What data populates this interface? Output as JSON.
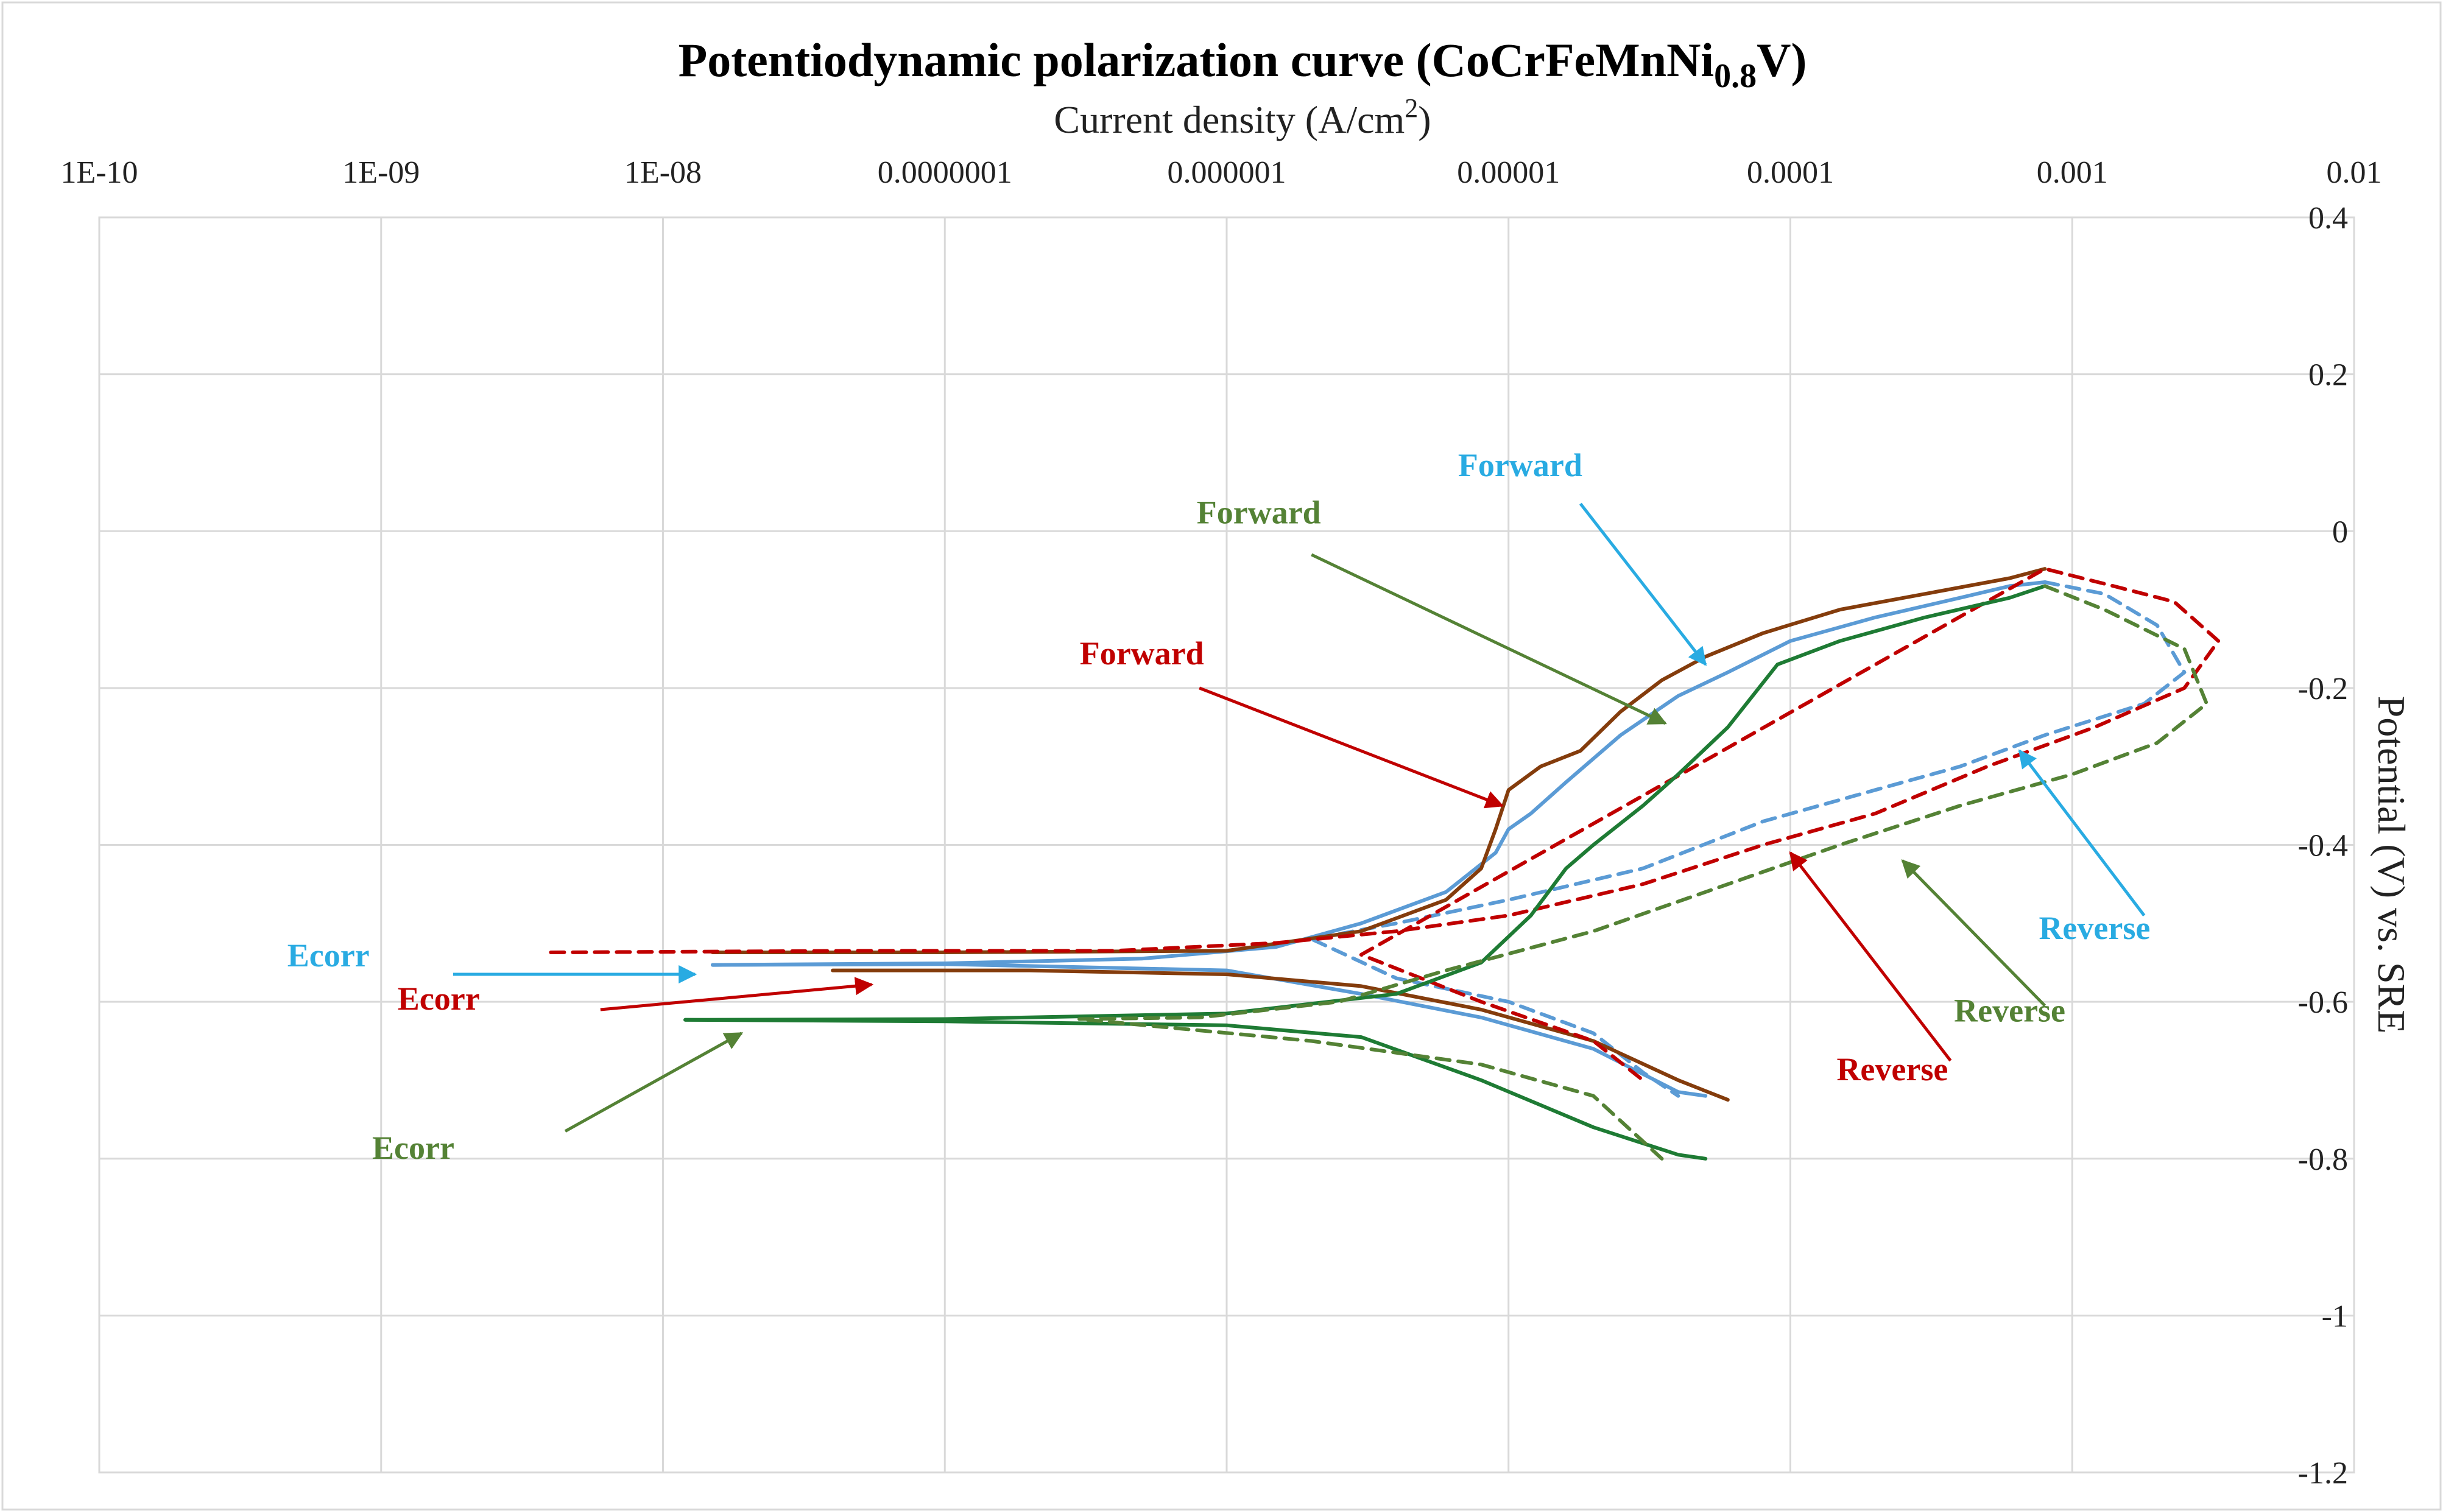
{
  "chart_data": {
    "type": "line",
    "title": {
      "main": "Potentiodynamic polarization curve (CoCrFeMnNi",
      "subscript": "0.8",
      "end": "V)"
    },
    "xlabel": {
      "main": "Current density (A/cm",
      "superscript": "2",
      "end": ")"
    },
    "ylabel": "Potential (V) vs. SRE",
    "x_scale": "log",
    "xlim": [
      1e-10,
      0.01
    ],
    "ylim": [
      -1.2,
      0.4
    ],
    "x_ticks": [
      {
        "value": 1e-10,
        "label": "1E-10"
      },
      {
        "value": 1e-09,
        "label": "1E-09"
      },
      {
        "value": 1e-08,
        "label": "1E-08"
      },
      {
        "value": 1e-07,
        "label": "0.0000001"
      },
      {
        "value": 1e-06,
        "label": "0.000001"
      },
      {
        "value": 1e-05,
        "label": "0.00001"
      },
      {
        "value": 0.0001,
        "label": "0.0001"
      },
      {
        "value": 0.001,
        "label": "0.001"
      },
      {
        "value": 0.01,
        "label": "0.01"
      }
    ],
    "y_ticks": [
      {
        "value": 0.4,
        "label": "0.4"
      },
      {
        "value": 0.2,
        "label": "0.2"
      },
      {
        "value": 0,
        "label": "0"
      },
      {
        "value": -0.2,
        "label": "-0.2"
      },
      {
        "value": -0.4,
        "label": "-0.4"
      },
      {
        "value": -0.6,
        "label": "-0.6"
      },
      {
        "value": -0.8,
        "label": "-0.8"
      },
      {
        "value": -1,
        "label": "-1"
      },
      {
        "value": -1.2,
        "label": "-1.2"
      }
    ],
    "grid": true,
    "x_axis_position": "top",
    "y_axis_position": "right",
    "series": [
      {
        "name": "Blue cathodic (forward)",
        "color": "#5b9bd5",
        "dash": "solid",
        "points": [
          [
            1.5e-08,
            -0.553
          ],
          [
            1e-07,
            -0.552
          ],
          [
            1e-06,
            -0.56
          ],
          [
            3e-06,
            -0.59
          ],
          [
            8e-06,
            -0.62
          ],
          [
            2e-05,
            -0.66
          ],
          [
            4e-05,
            -0.715
          ],
          [
            5e-05,
            -0.72
          ]
        ]
      },
      {
        "name": "Blue anodic (forward)",
        "color": "#5b9bd5",
        "dash": "solid",
        "points": [
          [
            1.5e-08,
            -0.553
          ],
          [
            1e-07,
            -0.551
          ],
          [
            5e-07,
            -0.545
          ],
          [
            1.5e-06,
            -0.53
          ],
          [
            3e-06,
            -0.5
          ],
          [
            6e-06,
            -0.46
          ],
          [
            9e-06,
            -0.41
          ],
          [
            1e-05,
            -0.38
          ],
          [
            1.2e-05,
            -0.36
          ],
          [
            1.6e-05,
            -0.32
          ],
          [
            2.5e-05,
            -0.26
          ],
          [
            4e-05,
            -0.21
          ],
          [
            6e-05,
            -0.18
          ],
          [
            0.0001,
            -0.14
          ],
          [
            0.0002,
            -0.11
          ],
          [
            0.0004,
            -0.085
          ],
          [
            0.0006,
            -0.07
          ],
          [
            0.0008,
            -0.065
          ]
        ]
      },
      {
        "name": "Blue reverse",
        "color": "#5b9bd5",
        "dash": "dashed",
        "points": [
          [
            0.0008,
            -0.065
          ],
          [
            0.0013,
            -0.08
          ],
          [
            0.002,
            -0.12
          ],
          [
            0.0025,
            -0.18
          ],
          [
            0.0018,
            -0.22
          ],
          [
            0.0008,
            -0.26
          ],
          [
            0.0004,
            -0.3
          ],
          [
            0.0002,
            -0.33
          ],
          [
            8e-05,
            -0.37
          ],
          [
            3e-05,
            -0.43
          ],
          [
            1e-05,
            -0.47
          ],
          [
            4e-06,
            -0.5
          ],
          [
            2e-06,
            -0.52
          ],
          [
            4e-06,
            -0.57
          ],
          [
            1e-05,
            -0.6
          ],
          [
            2e-05,
            -0.64
          ],
          [
            3e-05,
            -0.69
          ],
          [
            4e-05,
            -0.72
          ]
        ]
      },
      {
        "name": "Brown cathodic (forward)",
        "color": "#843c0c",
        "dash": "solid",
        "points": [
          [
            4e-08,
            -0.56
          ],
          [
            2e-07,
            -0.56
          ],
          [
            1e-06,
            -0.565
          ],
          [
            3e-06,
            -0.58
          ],
          [
            8e-06,
            -0.61
          ],
          [
            2e-05,
            -0.65
          ],
          [
            4e-05,
            -0.7
          ],
          [
            6e-05,
            -0.725
          ]
        ]
      },
      {
        "name": "Brown anodic (forward)",
        "color": "#843c0c",
        "dash": "solid",
        "points": [
          [
            1.5e-08,
            -0.537
          ],
          [
            1e-07,
            -0.537
          ],
          [
            1e-06,
            -0.535
          ],
          [
            3e-06,
            -0.51
          ],
          [
            6e-06,
            -0.47
          ],
          [
            8e-06,
            -0.43
          ],
          [
            9e-06,
            -0.38
          ],
          [
            1e-05,
            -0.33
          ],
          [
            1.3e-05,
            -0.3
          ],
          [
            1.8e-05,
            -0.28
          ],
          [
            2.5e-05,
            -0.23
          ],
          [
            3.5e-05,
            -0.19
          ],
          [
            5e-05,
            -0.16
          ],
          [
            8e-05,
            -0.13
          ],
          [
            0.00015,
            -0.1
          ],
          [
            0.0003,
            -0.08
          ],
          [
            0.0006,
            -0.06
          ],
          [
            0.0008,
            -0.048
          ]
        ]
      },
      {
        "name": "Red reverse",
        "color": "#c00000",
        "dash": "dashed",
        "points": [
          [
            4e-09,
            -0.537
          ],
          [
            5e-08,
            -0.535
          ],
          [
            4e-07,
            -0.535
          ],
          [
            1.5e-06,
            -0.525
          ],
          [
            4e-06,
            -0.51
          ],
          [
            1e-05,
            -0.49
          ],
          [
            3e-05,
            -0.45
          ],
          [
            8e-05,
            -0.4
          ],
          [
            0.0002,
            -0.36
          ],
          [
            0.0005,
            -0.3
          ],
          [
            0.0012,
            -0.25
          ],
          [
            0.0025,
            -0.2
          ],
          [
            0.0033,
            -0.14
          ],
          [
            0.0023,
            -0.09
          ],
          [
            0.0014,
            -0.07
          ],
          [
            0.0008,
            -0.048
          ],
          [
            3e-06,
            -0.54
          ],
          [
            8e-06,
            -0.6
          ],
          [
            2e-05,
            -0.65
          ],
          [
            3e-05,
            -0.7
          ]
        ]
      },
      {
        "name": "Green cathodic (forward)",
        "color": "#1e7b34",
        "dash": "solid",
        "points": [
          [
            1.2e-08,
            -0.623
          ],
          [
            1e-07,
            -0.625
          ],
          [
            1e-06,
            -0.63
          ],
          [
            3e-06,
            -0.645
          ],
          [
            8e-06,
            -0.7
          ],
          [
            2e-05,
            -0.76
          ],
          [
            4e-05,
            -0.795
          ],
          [
            5e-05,
            -0.8
          ]
        ]
      },
      {
        "name": "Green anodic (forward)",
        "color": "#1e7b34",
        "dash": "solid",
        "points": [
          [
            1.2e-08,
            -0.623
          ],
          [
            1e-07,
            -0.622
          ],
          [
            1e-06,
            -0.615
          ],
          [
            4e-06,
            -0.59
          ],
          [
            8e-06,
            -0.55
          ],
          [
            1.2e-05,
            -0.49
          ],
          [
            1.6e-05,
            -0.43
          ],
          [
            2e-05,
            -0.4
          ],
          [
            3e-05,
            -0.35
          ],
          [
            4e-05,
            -0.31
          ],
          [
            6e-05,
            -0.25
          ],
          [
            9e-05,
            -0.17
          ],
          [
            0.00015,
            -0.14
          ],
          [
            0.0003,
            -0.11
          ],
          [
            0.0006,
            -0.085
          ],
          [
            0.0008,
            -0.07
          ]
        ]
      },
      {
        "name": "Green reverse",
        "color": "#548235",
        "dash": "dashed",
        "points": [
          [
            0.0008,
            -0.07
          ],
          [
            0.0013,
            -0.1
          ],
          [
            0.0025,
            -0.15
          ],
          [
            0.003,
            -0.22
          ],
          [
            0.002,
            -0.27
          ],
          [
            0.001,
            -0.31
          ],
          [
            0.0004,
            -0.35
          ],
          [
            0.00015,
            -0.4
          ],
          [
            5e-05,
            -0.46
          ],
          [
            2e-05,
            -0.51
          ],
          [
            6e-06,
            -0.56
          ],
          [
            2.5e-06,
            -0.6
          ],
          [
            8e-07,
            -0.62
          ],
          [
            3e-07,
            -0.622
          ],
          [
            2e-06,
            -0.65
          ],
          [
            8e-06,
            -0.68
          ],
          [
            2e-05,
            -0.72
          ],
          [
            3.5e-05,
            -0.8
          ]
        ]
      }
    ],
    "annotations": [
      {
        "text": "Forward",
        "color": "#29abe2",
        "label_at": [
          1.1e-05,
          0.07
        ],
        "arrow_from": [
          1.8e-05,
          0.035
        ],
        "arrow_to": [
          5e-05,
          -0.17
        ]
      },
      {
        "text": "Forward",
        "color": "#548235",
        "label_at": [
          1.3e-06,
          0.01
        ],
        "arrow_from": [
          2e-06,
          -0.03
        ],
        "arrow_to": [
          3.6e-05,
          -0.245
        ]
      },
      {
        "text": "Forward",
        "color": "#c00000",
        "label_at": [
          5e-07,
          -0.17
        ],
        "arrow_from": [
          8e-07,
          -0.2
        ],
        "arrow_to": [
          9.5e-06,
          -0.35
        ]
      },
      {
        "text": "Ecorr",
        "color": "#29abe2",
        "label_at": [
          6.5e-10,
          -0.555
        ],
        "arrow_from": [
          1.8e-09,
          -0.565
        ],
        "arrow_to": [
          1.3e-08,
          -0.565
        ]
      },
      {
        "text": "Ecorr",
        "color": "#c00000",
        "label_at": [
          1.6e-09,
          -0.61
        ],
        "arrow_from": [
          6e-09,
          -0.61
        ],
        "arrow_to": [
          5.5e-08,
          -0.578
        ]
      },
      {
        "text": "Ecorr",
        "color": "#548235",
        "label_at": [
          1.3e-09,
          -0.8
        ],
        "arrow_from": [
          4.5e-09,
          -0.765
        ],
        "arrow_to": [
          1.9e-08,
          -0.64
        ]
      },
      {
        "text": "Reverse",
        "color": "#29abe2",
        "label_at": [
          0.0012,
          -0.52
        ],
        "arrow_from": [
          0.0018,
          -0.49
        ],
        "arrow_to": [
          0.00065,
          -0.28
        ]
      },
      {
        "text": "Reverse",
        "color": "#548235",
        "label_at": [
          0.0006,
          -0.625
        ],
        "arrow_from": [
          0.0008,
          -0.605
        ],
        "arrow_to": [
          0.00025,
          -0.42
        ]
      },
      {
        "text": "Reverse",
        "color": "#c00000",
        "label_at": [
          0.00023,
          -0.7
        ],
        "arrow_from": [
          0.00037,
          -0.675
        ],
        "arrow_to": [
          0.0001,
          -0.41
        ]
      }
    ]
  }
}
